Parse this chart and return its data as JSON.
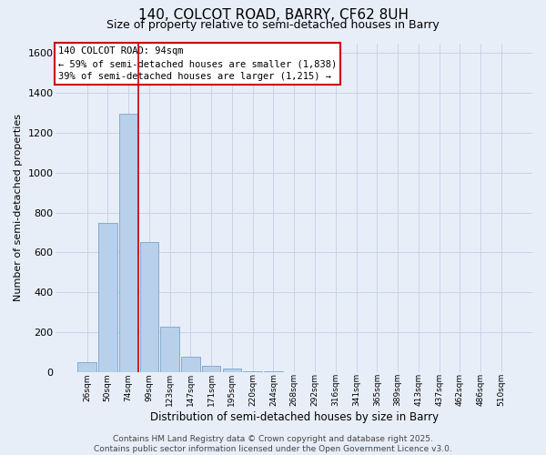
{
  "title1": "140, COLCOT ROAD, BARRY, CF62 8UH",
  "title2": "Size of property relative to semi-detached houses in Barry",
  "xlabel": "Distribution of semi-detached houses by size in Barry",
  "ylabel": "Number of semi-detached properties",
  "categories": [
    "26sqm",
    "50sqm",
    "74sqm",
    "99sqm",
    "123sqm",
    "147sqm",
    "171sqm",
    "195sqm",
    "220sqm",
    "244sqm",
    "268sqm",
    "292sqm",
    "316sqm",
    "341sqm",
    "365sqm",
    "389sqm",
    "413sqm",
    "437sqm",
    "462sqm",
    "486sqm",
    "510sqm"
  ],
  "values": [
    50,
    750,
    1295,
    650,
    225,
    75,
    30,
    15,
    5,
    2,
    0,
    0,
    0,
    0,
    0,
    0,
    0,
    0,
    0,
    0,
    0
  ],
  "bar_color": "#b8d0ea",
  "bar_edge_color": "#6699cc",
  "vline_color": "#cc0000",
  "vline_x": 2.5,
  "annotation_text": "140 COLCOT ROAD: 94sqm\n← 59% of semi-detached houses are smaller (1,838)\n39% of semi-detached houses are larger (1,215) →",
  "annotation_box_color": "#ffffff",
  "annotation_box_edge_color": "#cc0000",
  "ylim": [
    0,
    1650
  ],
  "yticks": [
    0,
    200,
    400,
    600,
    800,
    1000,
    1200,
    1400,
    1600
  ],
  "grid_color": "#c8d4e8",
  "background_color": "#e8eef8",
  "footer_text": "Contains HM Land Registry data © Crown copyright and database right 2025.\nContains public sector information licensed under the Open Government Licence v3.0.",
  "title1_fontsize": 11,
  "title2_fontsize": 9,
  "annotation_fontsize": 7.5,
  "footer_fontsize": 6.5,
  "xlabel_fontsize": 8.5,
  "ylabel_fontsize": 8,
  "ytick_fontsize": 8,
  "xtick_fontsize": 6.5
}
